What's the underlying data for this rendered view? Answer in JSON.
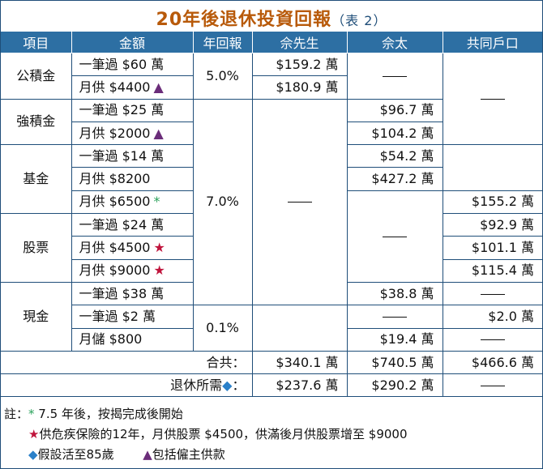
{
  "title": {
    "main": "20年後退休投資回報",
    "sub": "（表 2）"
  },
  "headers": [
    "項目",
    "金額",
    "年回報",
    "佘先生",
    "佘太",
    "共同戶口"
  ],
  "categories": {
    "mpf": "公積金",
    "orso": "強積金",
    "fund": "基金",
    "stock": "股票",
    "cash": "現金"
  },
  "amounts": {
    "mpf_lump": "一筆過 $60 萬",
    "mpf_monthly": "月供 $4400",
    "orso_lump": "一筆過 $25 萬",
    "orso_monthly": "月供 $2000",
    "fund_lump": "一筆過 $14 萬",
    "fund_monthly1": "月供 $8200",
    "fund_monthly2": "月供 $6500",
    "stock_lump": "一筆過 $24 萬",
    "stock_monthly1": "月供 $4500",
    "stock_monthly2": "月供 $9000",
    "cash_lump1": "一筆過 $38 萬",
    "cash_lump2": "一筆過 $2 萬",
    "cash_saving": "月儲 $800"
  },
  "returns": {
    "mpf": "5.0%",
    "mid": "7.0%",
    "cash": "0.1%"
  },
  "mr": {
    "mpf_lump": "$159.2 萬",
    "mpf_monthly": "$180.9 萬"
  },
  "mrs": {
    "orso_lump": "$96.7 萬",
    "orso_monthly": "$104.2 萬",
    "fund_lump": "$54.2 萬",
    "fund_monthly1": "$427.2 萬",
    "cash_lump1": "$38.8 萬",
    "cash_saving": "$19.4 萬"
  },
  "joint": {
    "fund_monthly2": "$155.2 萬",
    "stock_lump": "$92.9 萬",
    "stock_monthly1": "$101.1 萬",
    "stock_monthly2": "$115.4 萬",
    "cash_lump2": "$2.0 萬"
  },
  "totals": {
    "label": "合共：",
    "mr": "$340.1 萬",
    "mrs": "$740.5 萬",
    "joint": "$466.6 萬"
  },
  "required": {
    "label": "退休所需",
    "colon": "：",
    "mr": "$237.6 萬",
    "mrs": "$290.2 萬"
  },
  "markers": {
    "triangle": "▲",
    "star": "★",
    "asterisk": "*",
    "diamond": "◆"
  },
  "notes": {
    "prefix": "註：",
    "n1": "7.5 年後，按揭完成後開始",
    "n2": "供危疾保險的12年，月供股票 $4500，供滿後月供股票增至 $9000",
    "n3": "假設活至85歲",
    "n4": "包括僱主供款"
  },
  "colors": {
    "header_bg": "#2d6fa3",
    "title": "#b85a0a",
    "red": "#c0143c",
    "green": "#2aa15a",
    "blue": "#2a80c9",
    "purple": "#6b2d7a"
  }
}
